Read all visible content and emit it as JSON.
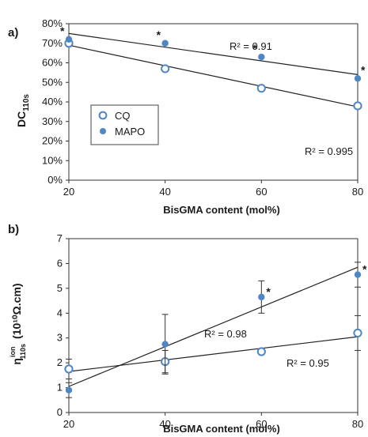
{
  "chart_data": [
    {
      "panel_label": "a)",
      "type": "scatter",
      "ylabel_main": "DC",
      "ylabel_sub": "110s",
      "xlabel": "BisGMA content (mol%)",
      "xlim": [
        20,
        80
      ],
      "ylim": [
        0,
        80
      ],
      "x_ticks": [
        "20",
        "40",
        "60",
        "80"
      ],
      "y_ticks": [
        "0%",
        "10%",
        "20%",
        "30%",
        "40%",
        "50%",
        "60%",
        "70%",
        "80%"
      ],
      "legend_position": "left",
      "series": [
        {
          "name": "CQ",
          "marker": "open-circle",
          "color": "#4f86c6",
          "x": [
            20,
            40,
            60,
            80
          ],
          "y": [
            70,
            57,
            47,
            38
          ],
          "trend": {
            "x": [
              20,
              80
            ],
            "y": [
              69,
              37.5
            ]
          },
          "r2_label": "R² = 0.995",
          "significance": []
        },
        {
          "name": "MAPO",
          "marker": "filled-circle",
          "color": "#4f86c6",
          "x": [
            20,
            40,
            60,
            80
          ],
          "y": [
            72,
            70,
            63,
            52
          ],
          "trend": {
            "x": [
              20,
              80
            ],
            "y": [
              75,
              54
            ]
          },
          "r2_label": "R² = 0.91",
          "significance": [
            "*",
            "*",
            "*",
            "*"
          ]
        }
      ]
    },
    {
      "panel_label": "b)",
      "type": "scatter",
      "ylabel_main": "η",
      "ylabel_sup": "ion",
      "ylabel_sub": "110s",
      "ylabel_unit": "(10¹⁰Ω.cm)",
      "xlabel": "BisGMA content (mol%)",
      "xlim": [
        20,
        80
      ],
      "ylim": [
        0,
        7
      ],
      "x_ticks": [
        "20",
        "40",
        "60",
        "80"
      ],
      "y_ticks": [
        "0",
        "1",
        "2",
        "3",
        "4",
        "5",
        "6",
        "7"
      ],
      "series": [
        {
          "name": "CQ",
          "marker": "open-circle",
          "color": "#4f86c6",
          "x": [
            20,
            40,
            60,
            80
          ],
          "y": [
            1.75,
            2.05,
            2.45,
            3.2
          ],
          "err": [
            0.4,
            0.45,
            0,
            0.7
          ],
          "trend": {
            "x": [
              20,
              80
            ],
            "y": [
              1.65,
              3.05
            ]
          },
          "r2_label": "R² = 0.95",
          "significance": []
        },
        {
          "name": "MAPO",
          "marker": "filled-circle",
          "color": "#4f86c6",
          "x": [
            20,
            40,
            60,
            80
          ],
          "y": [
            0.9,
            2.75,
            4.65,
            5.55
          ],
          "err": [
            0.3,
            1.2,
            0.65,
            0.5
          ],
          "trend": {
            "x": [
              20,
              80
            ],
            "y": [
              1.05,
              5.85
            ]
          },
          "r2_label": "R² = 0.98",
          "significance": [
            "",
            "",
            "*",
            "*"
          ]
        }
      ]
    }
  ]
}
